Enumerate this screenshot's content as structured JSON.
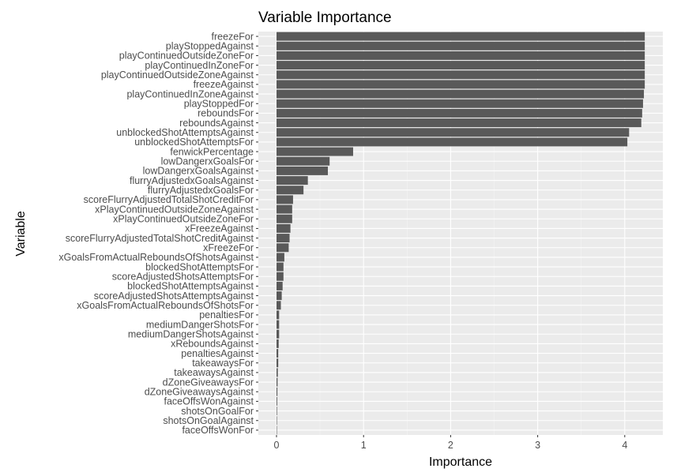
{
  "chart_data": {
    "type": "bar",
    "orientation": "horizontal",
    "title": "Variable Importance",
    "xlabel": "Importance",
    "ylabel": "Variable",
    "xlim": [
      -0.2,
      4.45
    ],
    "xticks": [
      0,
      1,
      2,
      3,
      4
    ],
    "xtick_labels": [
      "0",
      "1",
      "2",
      "3",
      "4"
    ],
    "grid": true,
    "colors": {
      "panel": "#ebebeb",
      "grid_major": "#ffffff",
      "bar": "#595959",
      "tick_text": "#4d4d4d",
      "tick_mark": "#333333"
    },
    "categories": [
      "freezeFor",
      "playStoppedAgainst",
      "playContinuedOutsideZoneFor",
      "playContinuedInZoneFor",
      "playContinuedOutsideZoneAgainst",
      "freezeAgainst",
      "playContinuedInZoneAgainst",
      "playStoppedFor",
      "reboundsFor",
      "reboundsAgainst",
      "unblockedShotAttemptsAgainst",
      "unblockedShotAttemptsFor",
      "fenwickPercentage",
      "lowDangerxGoalsFor",
      "lowDangerxGoalsAgainst",
      "flurryAdjustedxGoalsAgainst",
      "flurryAdjustedxGoalsFor",
      "scoreFlurryAdjustedTotalShotCreditFor",
      "xPlayContinuedOutsideZoneAgainst",
      "xPlayContinuedOutsideZoneFor",
      "xFreezeAgainst",
      "scoreFlurryAdjustedTotalShotCreditAgainst",
      "xFreezeFor",
      "xGoalsFromActualReboundsOfShotsAgainst",
      "blockedShotAttemptsFor",
      "scoreAdjustedShotsAttemptsFor",
      "blockedShotAttemptsAgainst",
      "scoreAdjustedShotsAttemptsAgainst",
      "xGoalsFromActualReboundsOfShotsFor",
      "penaltiesFor",
      "mediumDangerShotsFor",
      "mediumDangerShotsAgainst",
      "xReboundsAgainst",
      "penaltiesAgainst",
      "takeawaysFor",
      "takeawaysAgainst",
      "dZoneGiveawaysFor",
      "dZoneGiveawaysAgainst",
      "faceOffsWonAgainst",
      "shotsOnGoalFor",
      "shotsOnGoalAgainst",
      "faceOffsWonFor"
    ],
    "values": [
      4.23,
      4.23,
      4.23,
      4.23,
      4.23,
      4.23,
      4.22,
      4.21,
      4.2,
      4.19,
      4.05,
      4.03,
      0.88,
      0.61,
      0.59,
      0.36,
      0.31,
      0.19,
      0.18,
      0.18,
      0.16,
      0.15,
      0.14,
      0.09,
      0.08,
      0.08,
      0.07,
      0.06,
      0.05,
      0.03,
      0.03,
      0.03,
      0.025,
      0.02,
      0.02,
      0.015,
      0.012,
      0.01,
      0.008,
      0.006,
      0.005,
      0.004
    ]
  }
}
